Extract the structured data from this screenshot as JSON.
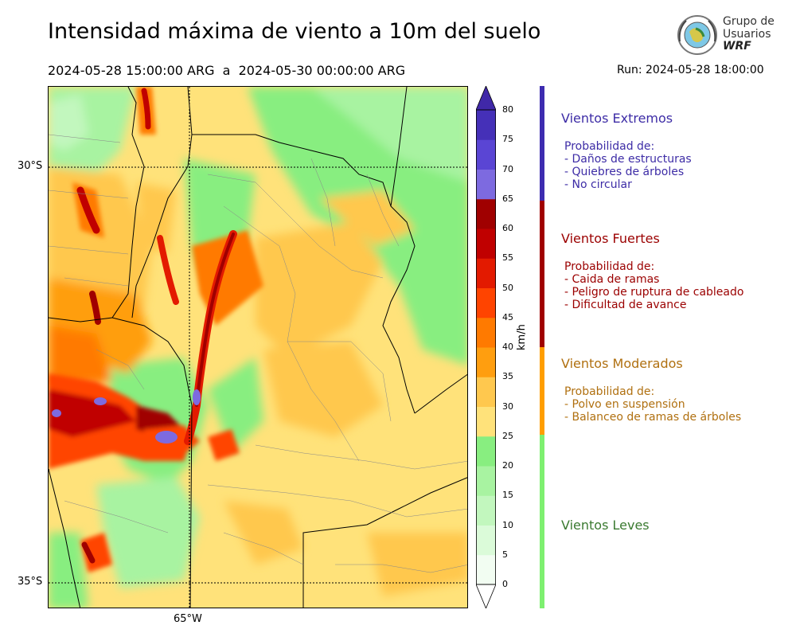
{
  "title": "Intensidad máxima de viento a 10m del suelo",
  "period": "2024-05-28 15:00:00 ARG  a  2024-05-30 00:00:00 ARG",
  "run": "Run: 2024-05-28 18:00:00",
  "logo": {
    "line1": "Grupo de",
    "line2": "Usuarios",
    "line3": "WRF"
  },
  "axes": {
    "lat_top": "30°S",
    "lat_bottom": "35°S",
    "lon": "65°W"
  },
  "colorbar": {
    "unit": "km/h",
    "ticks": [
      "0",
      "5",
      "10",
      "15",
      "20",
      "25",
      "30",
      "35",
      "40",
      "45",
      "50",
      "55",
      "60",
      "65",
      "70",
      "75",
      "80"
    ],
    "colors": [
      "#f2fdf2",
      "#dbfbd9",
      "#c2f7be",
      "#a8f3a1",
      "#88ee80",
      "#ffe27a",
      "#ffc84e",
      "#ff9e0f",
      "#ff7a00",
      "#ff4400",
      "#e31a00",
      "#c00000",
      "#a00000",
      "#7d6ae0",
      "#5a45d4",
      "#4530b8",
      "#4028a8"
    ]
  },
  "categories": [
    {
      "name": "Vientos Extremos",
      "color": "#3d2ca6",
      "lines": [
        "Probabilidad de:",
        "- Daños de estructuras",
        "- Quiebres de árboles",
        "- No circular"
      ]
    },
    {
      "name": "Vientos Fuertes",
      "color": "#9b0000",
      "lines": [
        "Probabilidad de:",
        "- Caida de ramas",
        "- Peligro de ruptura de cableado",
        "- Dificultad de avance"
      ]
    },
    {
      "name": "Vientos Moderados",
      "color": "#b07010",
      "lines": [
        "Probabilidad de:",
        "- Polvo en suspensión",
        "- Balanceo de ramas de árboles"
      ]
    },
    {
      "name": "Vientos Leves",
      "color": "#3a7a30",
      "lines": []
    }
  ],
  "category_bar_colors": [
    "#3d2cb0",
    "#a00000",
    "#ff9e00",
    "#7ef070"
  ]
}
